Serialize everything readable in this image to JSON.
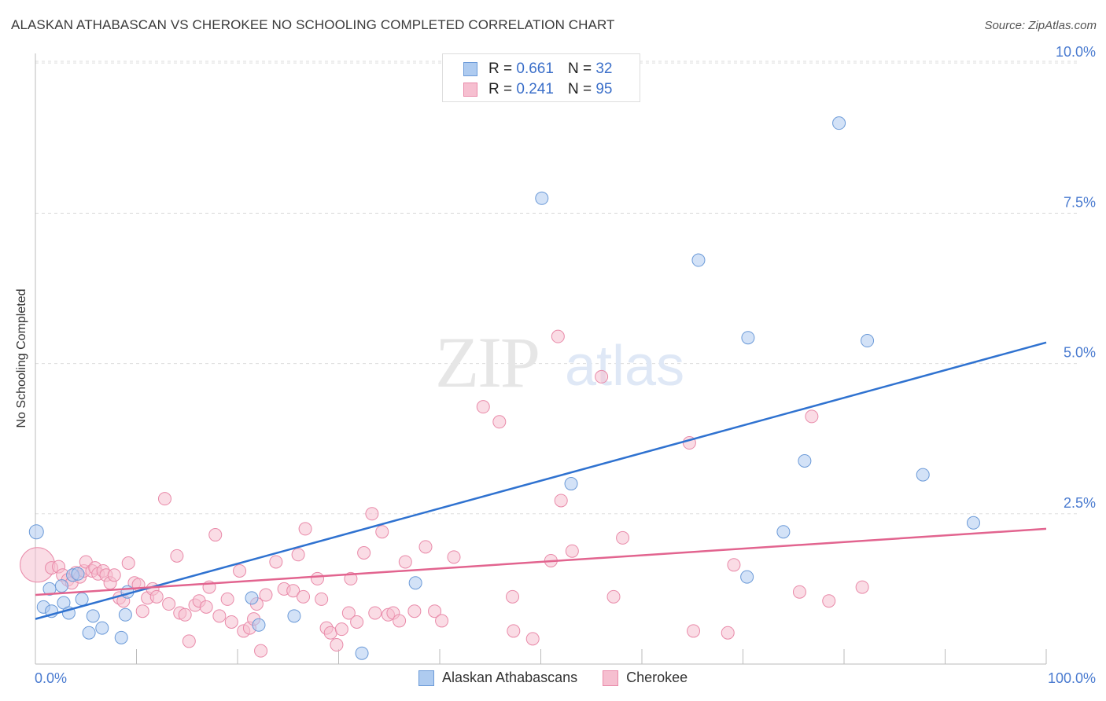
{
  "title": "ALASKAN ATHABASCAN VS CHEROKEE NO SCHOOLING COMPLETED CORRELATION CHART",
  "source": "Source: ZipAtlas.com",
  "watermark": {
    "zip": "ZIP",
    "atlas": "atlas"
  },
  "legend": {
    "rows": [
      {
        "r_label": "R =",
        "r_value": "0.661",
        "n_label": "N =",
        "n_value": "32"
      },
      {
        "r_label": "R =",
        "r_value": "0.241",
        "n_label": "N =",
        "n_value": "95"
      }
    ]
  },
  "bottom_legend": {
    "a": "Alaskan Athabascans",
    "b": "Cherokee"
  },
  "colors": {
    "blue_fill": "#aecbf0",
    "blue_stroke": "#6b9ad8",
    "blue_line": "#2f72d0",
    "pink_fill": "#f6bfd0",
    "pink_stroke": "#e98aa9",
    "pink_line": "#e2648f",
    "tick_text": "#4a7bd0",
    "grid": "#dddddd"
  },
  "chart_data": {
    "type": "scatter",
    "title": "ALASKAN ATHABASCAN VS CHEROKEE NO SCHOOLING COMPLETED CORRELATION CHART",
    "xlabel": "",
    "ylabel": "No Schooling Completed",
    "xlim": [
      0,
      100
    ],
    "ylim": [
      0,
      10.5
    ],
    "x_tick_labels": [
      "0.0%",
      "100.0%"
    ],
    "y_ticks": [
      2.5,
      5.0,
      7.5,
      10.0
    ],
    "y_tick_labels": [
      "2.5%",
      "5.0%",
      "7.5%",
      "10.0%"
    ],
    "series": [
      {
        "name": "Alaskan Athabascans",
        "R": 0.661,
        "N": 32,
        "trend": {
          "x": [
            0,
            100
          ],
          "y": [
            0.75,
            5.35
          ]
        },
        "points": [
          [
            0.1,
            2.2
          ],
          [
            0.8,
            0.95
          ],
          [
            1.4,
            1.25
          ],
          [
            1.6,
            0.88
          ],
          [
            2.6,
            1.3
          ],
          [
            2.8,
            1.02
          ],
          [
            3.3,
            0.85
          ],
          [
            3.7,
            1.48
          ],
          [
            4.2,
            1.5
          ],
          [
            4.6,
            1.08
          ],
          [
            5.3,
            0.52
          ],
          [
            5.7,
            0.8
          ],
          [
            6.6,
            0.6
          ],
          [
            8.5,
            0.44
          ],
          [
            8.9,
            0.82
          ],
          [
            9.1,
            1.2
          ],
          [
            21.4,
            1.1
          ],
          [
            22.1,
            0.65
          ],
          [
            25.6,
            0.8
          ],
          [
            32.3,
            0.18
          ],
          [
            37.6,
            1.35
          ],
          [
            50.1,
            7.75
          ],
          [
            53.0,
            3.0
          ],
          [
            65.6,
            6.72
          ],
          [
            70.5,
            5.43
          ],
          [
            74.0,
            2.2
          ],
          [
            76.1,
            3.38
          ],
          [
            79.5,
            9.0
          ],
          [
            82.3,
            5.38
          ],
          [
            87.8,
            3.15
          ],
          [
            92.8,
            2.35
          ],
          [
            70.4,
            1.45
          ]
        ]
      },
      {
        "name": "Cherokee",
        "R": 0.241,
        "N": 95,
        "trend": {
          "x": [
            0,
            100
          ],
          "y": [
            1.15,
            2.25
          ]
        },
        "points": [
          [
            0.2,
            1.65
          ],
          [
            1.6,
            1.6
          ],
          [
            2.3,
            1.62
          ],
          [
            2.7,
            1.48
          ],
          [
            3.2,
            1.4
          ],
          [
            3.6,
            1.35
          ],
          [
            4.0,
            1.52
          ],
          [
            4.4,
            1.45
          ],
          [
            4.8,
            1.55
          ],
          [
            5.0,
            1.7
          ],
          [
            5.6,
            1.55
          ],
          [
            5.9,
            1.6
          ],
          [
            6.2,
            1.5
          ],
          [
            6.7,
            1.55
          ],
          [
            7.0,
            1.48
          ],
          [
            7.4,
            1.35
          ],
          [
            7.8,
            1.48
          ],
          [
            8.3,
            1.1
          ],
          [
            8.7,
            1.05
          ],
          [
            9.2,
            1.68
          ],
          [
            9.8,
            1.35
          ],
          [
            10.2,
            1.32
          ],
          [
            10.6,
            0.88
          ],
          [
            11.1,
            1.1
          ],
          [
            11.6,
            1.25
          ],
          [
            12.0,
            1.12
          ],
          [
            12.8,
            2.75
          ],
          [
            13.2,
            1.0
          ],
          [
            14.0,
            1.8
          ],
          [
            14.3,
            0.85
          ],
          [
            14.8,
            0.82
          ],
          [
            15.2,
            0.38
          ],
          [
            15.8,
            0.98
          ],
          [
            16.2,
            1.05
          ],
          [
            16.9,
            0.95
          ],
          [
            17.2,
            1.28
          ],
          [
            17.8,
            2.15
          ],
          [
            18.2,
            0.8
          ],
          [
            19.0,
            1.08
          ],
          [
            19.4,
            0.7
          ],
          [
            20.2,
            1.55
          ],
          [
            20.6,
            0.55
          ],
          [
            21.2,
            0.6
          ],
          [
            21.6,
            0.75
          ],
          [
            21.9,
            1.0
          ],
          [
            22.3,
            0.22
          ],
          [
            22.8,
            1.15
          ],
          [
            23.8,
            1.7
          ],
          [
            24.6,
            1.25
          ],
          [
            25.5,
            1.22
          ],
          [
            26.0,
            1.82
          ],
          [
            26.5,
            1.12
          ],
          [
            26.7,
            2.25
          ],
          [
            27.9,
            1.42
          ],
          [
            28.3,
            1.08
          ],
          [
            28.8,
            0.6
          ],
          [
            29.2,
            0.52
          ],
          [
            29.8,
            0.32
          ],
          [
            30.3,
            0.58
          ],
          [
            31.0,
            0.85
          ],
          [
            31.2,
            1.42
          ],
          [
            31.8,
            0.7
          ],
          [
            32.5,
            1.85
          ],
          [
            33.3,
            2.5
          ],
          [
            33.6,
            0.85
          ],
          [
            34.3,
            2.2
          ],
          [
            34.9,
            0.82
          ],
          [
            35.4,
            0.85
          ],
          [
            36.0,
            0.72
          ],
          [
            36.6,
            1.7
          ],
          [
            37.5,
            0.88
          ],
          [
            38.6,
            1.95
          ],
          [
            39.5,
            0.88
          ],
          [
            40.2,
            0.72
          ],
          [
            41.4,
            1.78
          ],
          [
            44.3,
            4.28
          ],
          [
            45.9,
            4.03
          ],
          [
            47.2,
            1.12
          ],
          [
            47.3,
            0.55
          ],
          [
            49.2,
            0.42
          ],
          [
            51.0,
            1.72
          ],
          [
            52.0,
            2.72
          ],
          [
            53.1,
            1.88
          ],
          [
            51.7,
            5.45
          ],
          [
            56.0,
            4.78
          ],
          [
            57.2,
            1.12
          ],
          [
            58.1,
            2.1
          ],
          [
            64.7,
            3.68
          ],
          [
            65.1,
            0.55
          ],
          [
            68.5,
            0.52
          ],
          [
            69.1,
            1.65
          ],
          [
            75.6,
            1.2
          ],
          [
            76.8,
            4.12
          ],
          [
            78.5,
            1.05
          ],
          [
            81.8,
            1.28
          ]
        ]
      }
    ]
  }
}
